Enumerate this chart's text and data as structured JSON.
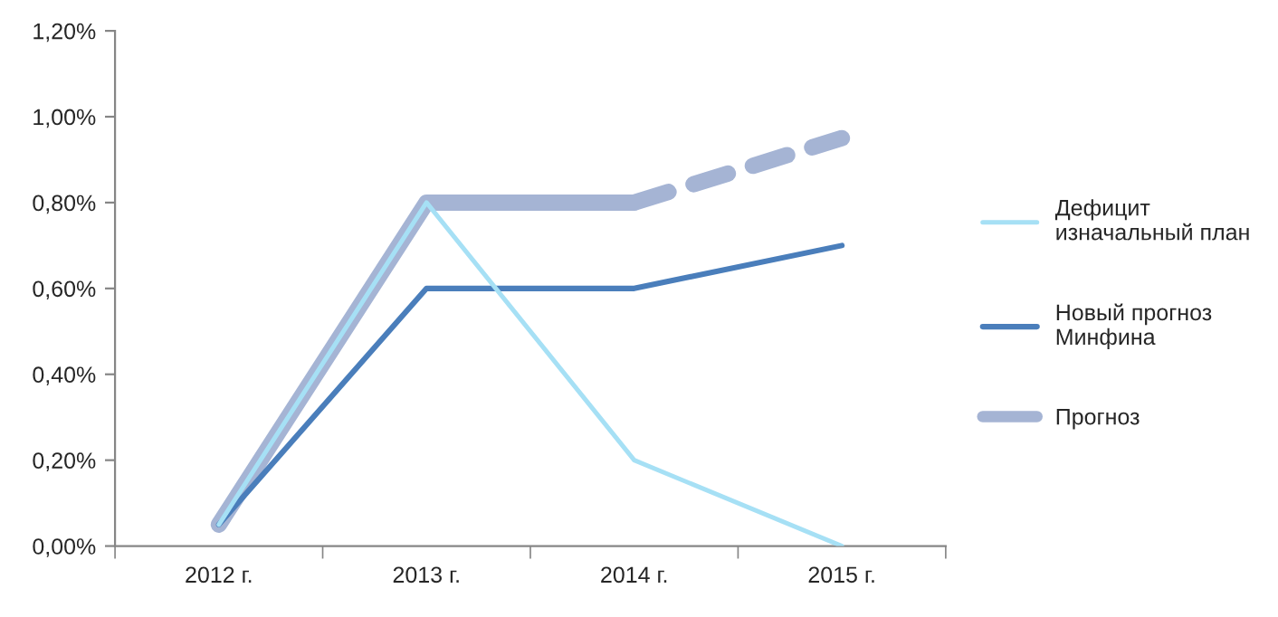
{
  "chart_data": {
    "type": "line",
    "categories": [
      "2012 г.",
      "2013 г.",
      "2014 г.",
      "2015 г."
    ],
    "series": [
      {
        "name": "Дефицит\nизначальный план",
        "color": "#a6e0f5",
        "values": [
          0.05,
          0.8,
          0.2,
          0.0
        ]
      },
      {
        "name": "Новый прогноз\nМинфина",
        "color": "#4a7ebb",
        "values": [
          0.05,
          0.6,
          0.6,
          0.7
        ]
      },
      {
        "name": "Прогноз",
        "color": "#a5b4d4",
        "values": [
          0.05,
          0.8,
          0.8,
          null
        ]
      },
      {
        "color": "#a5b4d4",
        "values": [
          null,
          null,
          0.8,
          0.95
        ],
        "line_style": "dashed"
      }
    ],
    "ylim": [
      0,
      1.2
    ],
    "yticks": [
      {
        "value": 0,
        "label": "0,00%"
      },
      {
        "value": 0.2,
        "label": "0,20%"
      },
      {
        "value": 0.4,
        "label": "0,40%"
      },
      {
        "value": 0.6,
        "label": "0,60%"
      },
      {
        "value": 0.8,
        "label": "0,80%"
      },
      {
        "value": 1.0,
        "label": "1,00%"
      },
      {
        "value": 1.2,
        "label": "1,20%"
      }
    ],
    "legend": "right"
  }
}
